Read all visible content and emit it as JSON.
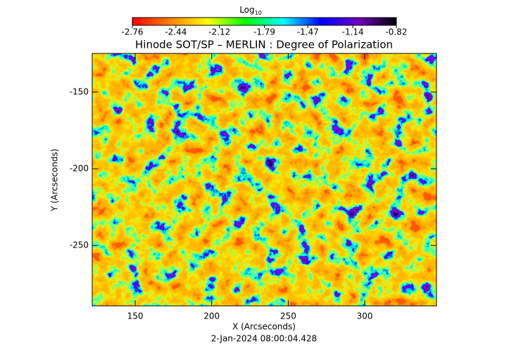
{
  "chart_data": {
    "type": "image",
    "title": "Hinode SOT/SP – MERLIN : Degree of Polarization",
    "x_label": "X (Arcseconds)",
    "y_label": "Y (Arcseconds)",
    "date": "2-Jan-2024 08:00:04.428",
    "xlim": [
      121.9,
      346.9
    ],
    "ylim": [
      -289.4,
      -124.8
    ],
    "xticks": [
      150,
      200,
      250,
      300
    ],
    "yticks": [
      -150,
      -200,
      -250
    ],
    "colorbar_label": "Log",
    "colorbar_label_sub": "10",
    "colorbar_lim": [
      -2.76,
      -0.82
    ],
    "colorbar_ticks": [
      -2.76,
      -2.44,
      -2.12,
      -1.79,
      -1.47,
      -1.14,
      -0.82
    ],
    "colormap": [
      "#ff0000",
      "#ff8000",
      "#ffff00",
      "#00ff00",
      "#00ffff",
      "#0000ff",
      "#7000c0",
      "#000000"
    ]
  }
}
